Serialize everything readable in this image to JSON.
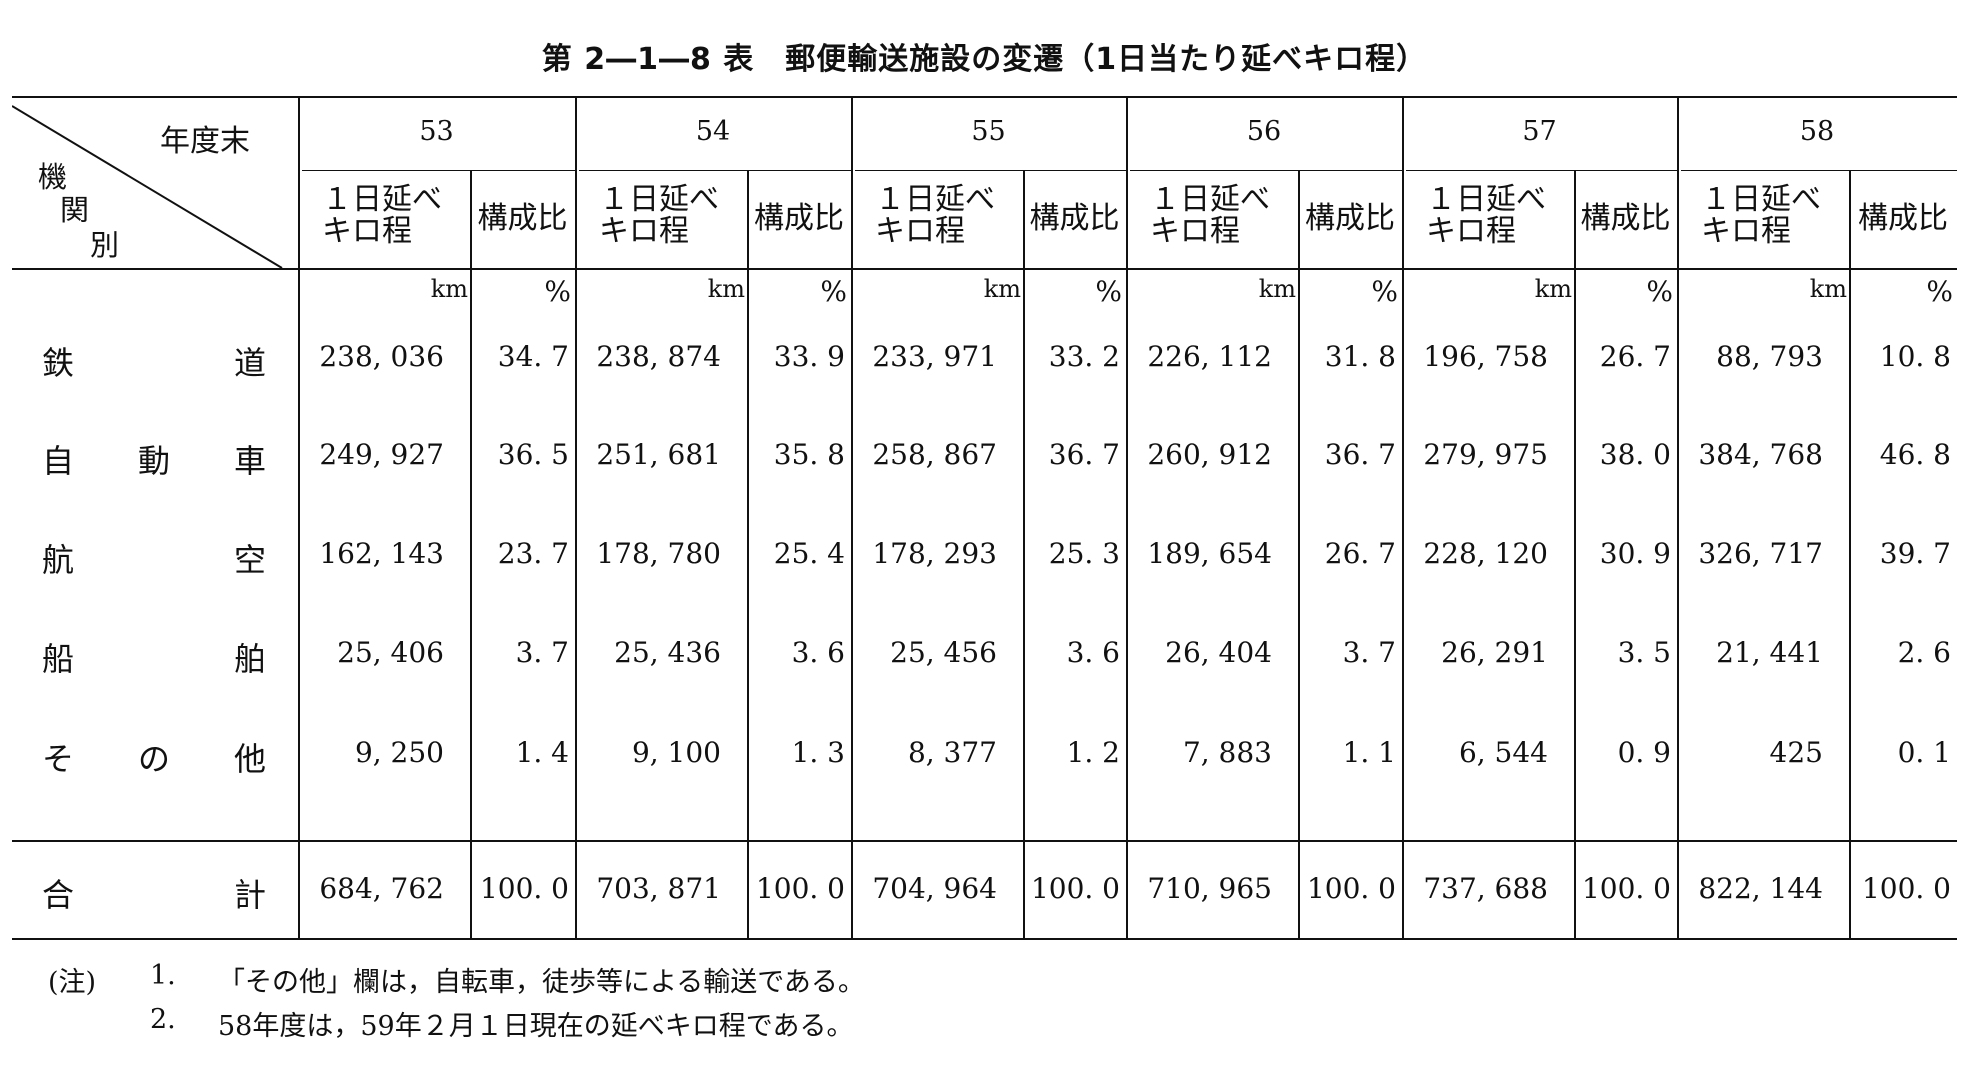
{
  "title": "第 2―1―8 表　郵便輸送施設の変遷（1日当たり延べキロ程）",
  "corner": {
    "top": "年度末",
    "left": [
      "機",
      "関",
      "別"
    ]
  },
  "subheaders": {
    "km_label_line1": "１日延べ",
    "km_label_line2": "キロ程",
    "ratio_label": "構成比"
  },
  "units": {
    "km": "km",
    "pct": "%"
  },
  "years": [
    "53",
    "54",
    "55",
    "56",
    "57",
    "58"
  ],
  "rows": [
    {
      "label": [
        "鉄",
        "道"
      ],
      "values": [
        [
          "238, 036",
          "34. 7"
        ],
        [
          "238, 874",
          "33. 9"
        ],
        [
          "233, 971",
          "33. 2"
        ],
        [
          "226, 112",
          "31. 8"
        ],
        [
          "196, 758",
          "26. 7"
        ],
        [
          "88, 793",
          "10. 8"
        ]
      ]
    },
    {
      "label": [
        "自",
        "動",
        "車"
      ],
      "values": [
        [
          "249, 927",
          "36. 5"
        ],
        [
          "251, 681",
          "35. 8"
        ],
        [
          "258, 867",
          "36. 7"
        ],
        [
          "260, 912",
          "36. 7"
        ],
        [
          "279, 975",
          "38. 0"
        ],
        [
          "384, 768",
          "46. 8"
        ]
      ]
    },
    {
      "label": [
        "航",
        "空"
      ],
      "values": [
        [
          "162, 143",
          "23. 7"
        ],
        [
          "178, 780",
          "25. 4"
        ],
        [
          "178, 293",
          "25. 3"
        ],
        [
          "189, 654",
          "26. 7"
        ],
        [
          "228, 120",
          "30. 9"
        ],
        [
          "326, 717",
          "39. 7"
        ]
      ]
    },
    {
      "label": [
        "船",
        "舶"
      ],
      "values": [
        [
          "25, 406",
          "3. 7"
        ],
        [
          "25, 436",
          "3. 6"
        ],
        [
          "25, 456",
          "3. 6"
        ],
        [
          "26, 404",
          "3. 7"
        ],
        [
          "26, 291",
          "3. 5"
        ],
        [
          "21, 441",
          "2. 6"
        ]
      ]
    },
    {
      "label": [
        "そ",
        "の",
        "他"
      ],
      "values": [
        [
          "9, 250",
          "1. 4"
        ],
        [
          "9, 100",
          "1. 3"
        ],
        [
          "8, 377",
          "1. 2"
        ],
        [
          "7, 883",
          "1. 1"
        ],
        [
          "6, 544",
          "0. 9"
        ],
        [
          "425",
          "0. 1"
        ]
      ]
    }
  ],
  "total": {
    "label": [
      "合",
      "計"
    ],
    "values": [
      [
        "684, 762",
        "100. 0"
      ],
      [
        "703, 871",
        "100. 0"
      ],
      [
        "704, 964",
        "100. 0"
      ],
      [
        "710, 965",
        "100. 0"
      ],
      [
        "737, 688",
        "100. 0"
      ],
      [
        "822, 144",
        "100. 0"
      ]
    ]
  },
  "notes": {
    "prefix": "(注)",
    "items": [
      {
        "num": "1.",
        "text": "「その他」欄は，自転車，徒歩等による輸送である。"
      },
      {
        "num": "2.",
        "text": "58年度は，59年２月１日現在の延べキロ程である。"
      }
    ]
  }
}
